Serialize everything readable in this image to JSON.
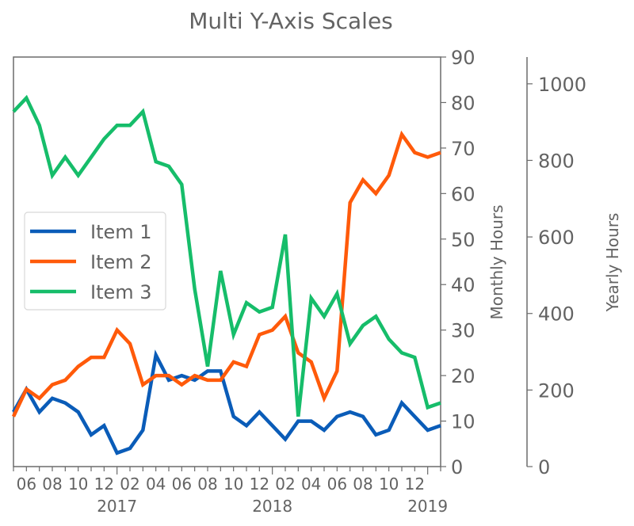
{
  "chart_data": {
    "type": "line",
    "title": "Multi Y-Axis Scales",
    "xlabel": "",
    "ylabel": "Monthly Hours",
    "y2label": "Yearly Hours",
    "ylim": [
      0,
      90
    ],
    "y2lim": [
      0,
      1070
    ],
    "grid": false,
    "legend_position": "center left",
    "x": [
      "2016-05",
      "2016-06",
      "2016-07",
      "2016-08",
      "2016-09",
      "2016-10",
      "2016-11",
      "2016-12",
      "2017-01",
      "2017-02",
      "2017-03",
      "2017-04",
      "2017-05",
      "2017-06",
      "2017-07",
      "2017-08",
      "2017-09",
      "2017-10",
      "2017-11",
      "2017-12",
      "2018-01",
      "2018-02",
      "2018-03",
      "2018-04",
      "2018-05",
      "2018-06",
      "2018-07",
      "2018-08",
      "2018-09",
      "2018-10",
      "2018-11",
      "2018-12",
      "2019-01",
      "2019-02"
    ],
    "x_minor_ticks": [
      "06",
      "08",
      "10",
      "12",
      "02",
      "04",
      "06",
      "08",
      "10",
      "12",
      "02",
      "04",
      "06",
      "08",
      "10",
      "12"
    ],
    "x_major_ticks": [
      "2017",
      "2018",
      "2019"
    ],
    "y_ticks": [
      0,
      10,
      20,
      30,
      40,
      50,
      60,
      70,
      80,
      90
    ],
    "y2_ticks": [
      0,
      200,
      400,
      600,
      800,
      1000
    ],
    "series": [
      {
        "name": "Item 1",
        "color": "#0a5cb8",
        "values": [
          12,
          17,
          12,
          15,
          14,
          12,
          7,
          9,
          3,
          4,
          8,
          24.5,
          19,
          20,
          19,
          21,
          21,
          11,
          9,
          12,
          9,
          6,
          10,
          10,
          8,
          11,
          12,
          11,
          7,
          8,
          14,
          11,
          8,
          9
        ]
      },
      {
        "name": "Item 2",
        "color": "#ff5a0a",
        "values": [
          11,
          17,
          15,
          18,
          19,
          22,
          24,
          24,
          30,
          27,
          18,
          20,
          20,
          18,
          20,
          19,
          19,
          23,
          22,
          29,
          30,
          33,
          25,
          23,
          15,
          21,
          58,
          63,
          60,
          64,
          73,
          69,
          68,
          69
        ]
      },
      {
        "name": "Item 3",
        "color": "#16bd6a",
        "values": [
          78,
          81,
          75,
          64,
          68,
          64,
          68,
          72,
          75,
          75,
          78,
          67,
          66,
          62,
          39,
          22,
          43,
          29,
          36,
          34,
          35,
          51,
          11,
          37,
          33,
          38,
          27,
          31,
          33,
          28,
          25,
          24,
          13,
          14
        ]
      }
    ]
  }
}
